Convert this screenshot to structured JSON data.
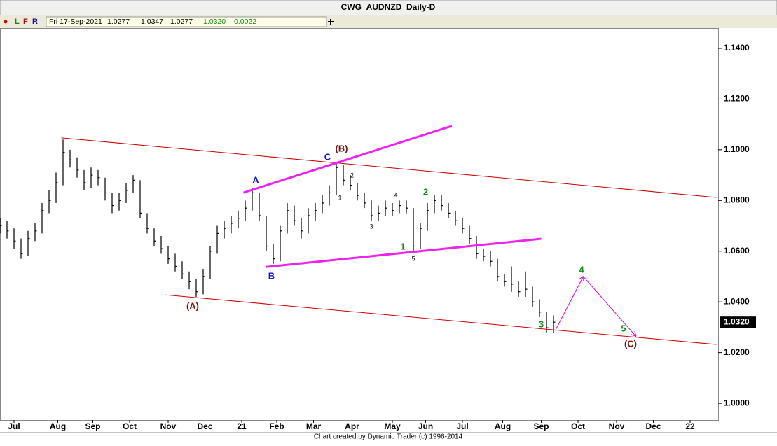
{
  "header": {
    "title": "CWG_AUDNZD_Daily-D",
    "toolbar": [
      "L",
      "F",
      "R"
    ],
    "date": "Fri 17-Sep-2021",
    "open": "1.0277",
    "high": "1.0347",
    "low": "1.0277",
    "close": "1.0320",
    "change": "0.0022"
  },
  "chart_data": {
    "type": "hlc",
    "color": "#000000",
    "x": [
      0,
      4,
      8,
      12,
      16,
      20,
      24,
      28,
      32,
      36,
      40,
      44,
      48,
      52,
      56,
      60,
      64,
      68,
      72,
      76,
      80,
      84,
      88,
      92,
      96,
      100,
      104,
      108,
      112,
      116,
      120,
      124,
      128,
      132,
      136,
      140,
      144,
      148,
      152,
      156,
      160,
      164,
      168,
      172,
      176,
      180,
      184,
      188,
      192,
      196,
      200,
      204,
      208,
      212,
      216,
      220,
      224,
      228,
      232,
      236,
      240,
      244,
      248,
      252,
      256,
      260,
      264,
      268,
      272,
      276,
      280,
      284,
      288,
      292,
      296,
      300,
      304,
      308,
      312,
      316
    ],
    "high": [
      1.073,
      1.072,
      1.069,
      1.065,
      1.068,
      1.071,
      1.079,
      1.084,
      1.091,
      1.104,
      1.1,
      1.097,
      1.092,
      1.093,
      1.092,
      1.089,
      1.083,
      1.083,
      1.087,
      1.09,
      1.088,
      1.075,
      1.069,
      1.066,
      1.062,
      1.059,
      1.056,
      1.052,
      1.049,
      1.053,
      1.062,
      1.07,
      1.072,
      1.074,
      1.076,
      1.08,
      1.085,
      1.083,
      1.074,
      1.063,
      1.07,
      1.079,
      1.078,
      1.073,
      1.077,
      1.079,
      1.082,
      1.086,
      1.095,
      1.094,
      1.09,
      1.087,
      1.083,
      1.08,
      1.078,
      1.08,
      1.079,
      1.08,
      1.08,
      1.077,
      1.071,
      1.079,
      1.082,
      1.082,
      1.079,
      1.076,
      1.073,
      1.07,
      1.066,
      1.061,
      1.06,
      1.057,
      1.051,
      1.054,
      1.048,
      1.052,
      1.046,
      1.041,
      1.036,
      1.0347
    ],
    "low": [
      1.067,
      1.065,
      1.061,
      1.057,
      1.058,
      1.064,
      1.067,
      1.075,
      1.079,
      1.086,
      1.093,
      1.089,
      1.084,
      1.085,
      1.086,
      1.08,
      1.075,
      1.076,
      1.079,
      1.083,
      1.073,
      1.067,
      1.062,
      1.059,
      1.055,
      1.052,
      1.049,
      1.045,
      1.042,
      1.043,
      1.049,
      1.059,
      1.065,
      1.067,
      1.069,
      1.072,
      1.076,
      1.072,
      1.06,
      1.055,
      1.056,
      1.067,
      1.07,
      1.065,
      1.067,
      1.072,
      1.075,
      1.078,
      1.082,
      1.086,
      1.084,
      1.08,
      1.077,
      1.072,
      1.072,
      1.074,
      1.074,
      1.075,
      1.075,
      1.06,
      1.061,
      1.068,
      1.075,
      1.076,
      1.073,
      1.07,
      1.067,
      1.063,
      1.057,
      1.056,
      1.054,
      1.048,
      1.046,
      1.044,
      1.042,
      1.042,
      1.038,
      1.034,
      1.028,
      1.0277
    ],
    "close": [
      1.07,
      1.068,
      1.064,
      1.059,
      1.065,
      1.068,
      1.076,
      1.08,
      1.087,
      1.099,
      1.096,
      1.092,
      1.087,
      1.09,
      1.089,
      1.083,
      1.078,
      1.08,
      1.084,
      1.088,
      1.075,
      1.069,
      1.064,
      1.061,
      1.057,
      1.054,
      1.051,
      1.048,
      1.044,
      1.05,
      1.06,
      1.067,
      1.069,
      1.071,
      1.073,
      1.077,
      1.083,
      1.074,
      1.062,
      1.057,
      1.068,
      1.076,
      1.072,
      1.068,
      1.074,
      1.076,
      1.079,
      1.083,
      1.093,
      1.088,
      1.086,
      1.082,
      1.079,
      1.074,
      1.075,
      1.077,
      1.076,
      1.078,
      1.077,
      1.062,
      1.069,
      1.076,
      1.08,
      1.078,
      1.075,
      1.072,
      1.069,
      1.065,
      1.059,
      1.058,
      1.056,
      1.05,
      1.048,
      1.047,
      1.044,
      1.045,
      1.04,
      1.036,
      1.0298,
      1.032
    ],
    "xlim": [
      0,
      410
    ],
    "ylim": [
      0.9934,
      1.148
    ],
    "xticks": [
      {
        "value": 8,
        "label": "Jul"
      },
      {
        "value": 33,
        "label": "Aug"
      },
      {
        "value": 53,
        "label": "Sep"
      },
      {
        "value": 74,
        "label": "Oct"
      },
      {
        "value": 96,
        "label": "Nov"
      },
      {
        "value": 117,
        "label": "Dec"
      },
      {
        "value": 138,
        "label": "21"
      },
      {
        "value": 158,
        "label": "Feb"
      },
      {
        "value": 179,
        "label": "Mar"
      },
      {
        "value": 201,
        "label": "Apr"
      },
      {
        "value": 224,
        "label": "May"
      },
      {
        "value": 243,
        "label": "Jun"
      },
      {
        "value": 264,
        "label": "Jul"
      },
      {
        "value": 287,
        "label": "Aug"
      },
      {
        "value": 309,
        "label": "Sep"
      },
      {
        "value": 330,
        "label": "Oct"
      },
      {
        "value": 352,
        "label": "Nov"
      },
      {
        "value": 373,
        "label": "Dec"
      },
      {
        "value": 394,
        "label": "22"
      }
    ],
    "yticks": [
      {
        "value": 1.0,
        "label": "1.0000"
      },
      {
        "value": 1.02,
        "label": "1.0200"
      },
      {
        "value": 1.04,
        "label": "1.0400"
      },
      {
        "value": 1.06,
        "label": "1.0600"
      },
      {
        "value": 1.08,
        "label": "1.0800"
      },
      {
        "value": 1.1,
        "label": "1.1000"
      },
      {
        "value": 1.12,
        "label": "1.1200"
      },
      {
        "value": 1.14,
        "label": "1.1400"
      }
    ],
    "lines": [
      {
        "x": [
          35,
          409
        ],
        "y": [
          1.1047,
          1.0812
        ],
        "color": "#cc0000",
        "style": "channel"
      },
      {
        "x": [
          94,
          409
        ],
        "y": [
          1.0428,
          1.0232
        ],
        "color": "#cc0000",
        "style": "channel"
      },
      {
        "x": [
          139,
          258
        ],
        "y": [
          1.0831,
          1.1094
        ],
        "color": "#ee22ee",
        "style": "trend"
      },
      {
        "x": [
          152,
          309
        ],
        "y": [
          1.0538,
          1.0649
        ],
        "color": "#ee22ee",
        "style": "trend"
      },
      {
        "x": [
          317,
          333
        ],
        "y": [
          1.0287,
          1.05
        ],
        "color": "#dd00dd",
        "style": "projection"
      },
      {
        "x": [
          333,
          363
        ],
        "y": [
          1.05,
          1.0265
        ],
        "color": "#dd00dd",
        "style": "projection"
      }
    ],
    "annotations": [
      {
        "text": "(A)",
        "x": 110,
        "y": 1.0381,
        "color": "#7a1010"
      },
      {
        "text": "A",
        "x": 146,
        "y": 1.0878,
        "color": "#1010cc"
      },
      {
        "text": "B",
        "x": 155,
        "y": 1.05,
        "color": "#1010cc"
      },
      {
        "text": "C",
        "x": 187,
        "y": 1.0969,
        "color": "#1010cc"
      },
      {
        "text": "(B)",
        "x": 195,
        "y": 1.1002,
        "color": "#7a1010"
      },
      {
        "text": "1",
        "x": 194,
        "y": 1.0809,
        "color": "#000000"
      },
      {
        "text": "2",
        "x": 201,
        "y": 1.0897,
        "color": "#000000"
      },
      {
        "text": "3",
        "x": 212,
        "y": 1.0696,
        "color": "#000000"
      },
      {
        "text": "4",
        "x": 226,
        "y": 1.082,
        "color": "#000000"
      },
      {
        "text": "5",
        "x": 236,
        "y": 1.0569,
        "color": "#000000"
      },
      {
        "text": "1",
        "x": 230,
        "y": 1.0616,
        "color": "#118811"
      },
      {
        "text": "2",
        "x": 243,
        "y": 1.0831,
        "color": "#118811"
      },
      {
        "text": "3",
        "x": 309,
        "y": 1.0309,
        "color": "#118811"
      },
      {
        "text": "4",
        "x": 332,
        "y": 1.0525,
        "color": "#118811"
      },
      {
        "text": "5",
        "x": 356,
        "y": 1.0293,
        "color": "#118811"
      },
      {
        "text": "(C)",
        "x": 360,
        "y": 1.0232,
        "color": "#7a1010"
      }
    ]
  },
  "footer": "Chart created by Dynamic Trader  (c) 1996-2014"
}
